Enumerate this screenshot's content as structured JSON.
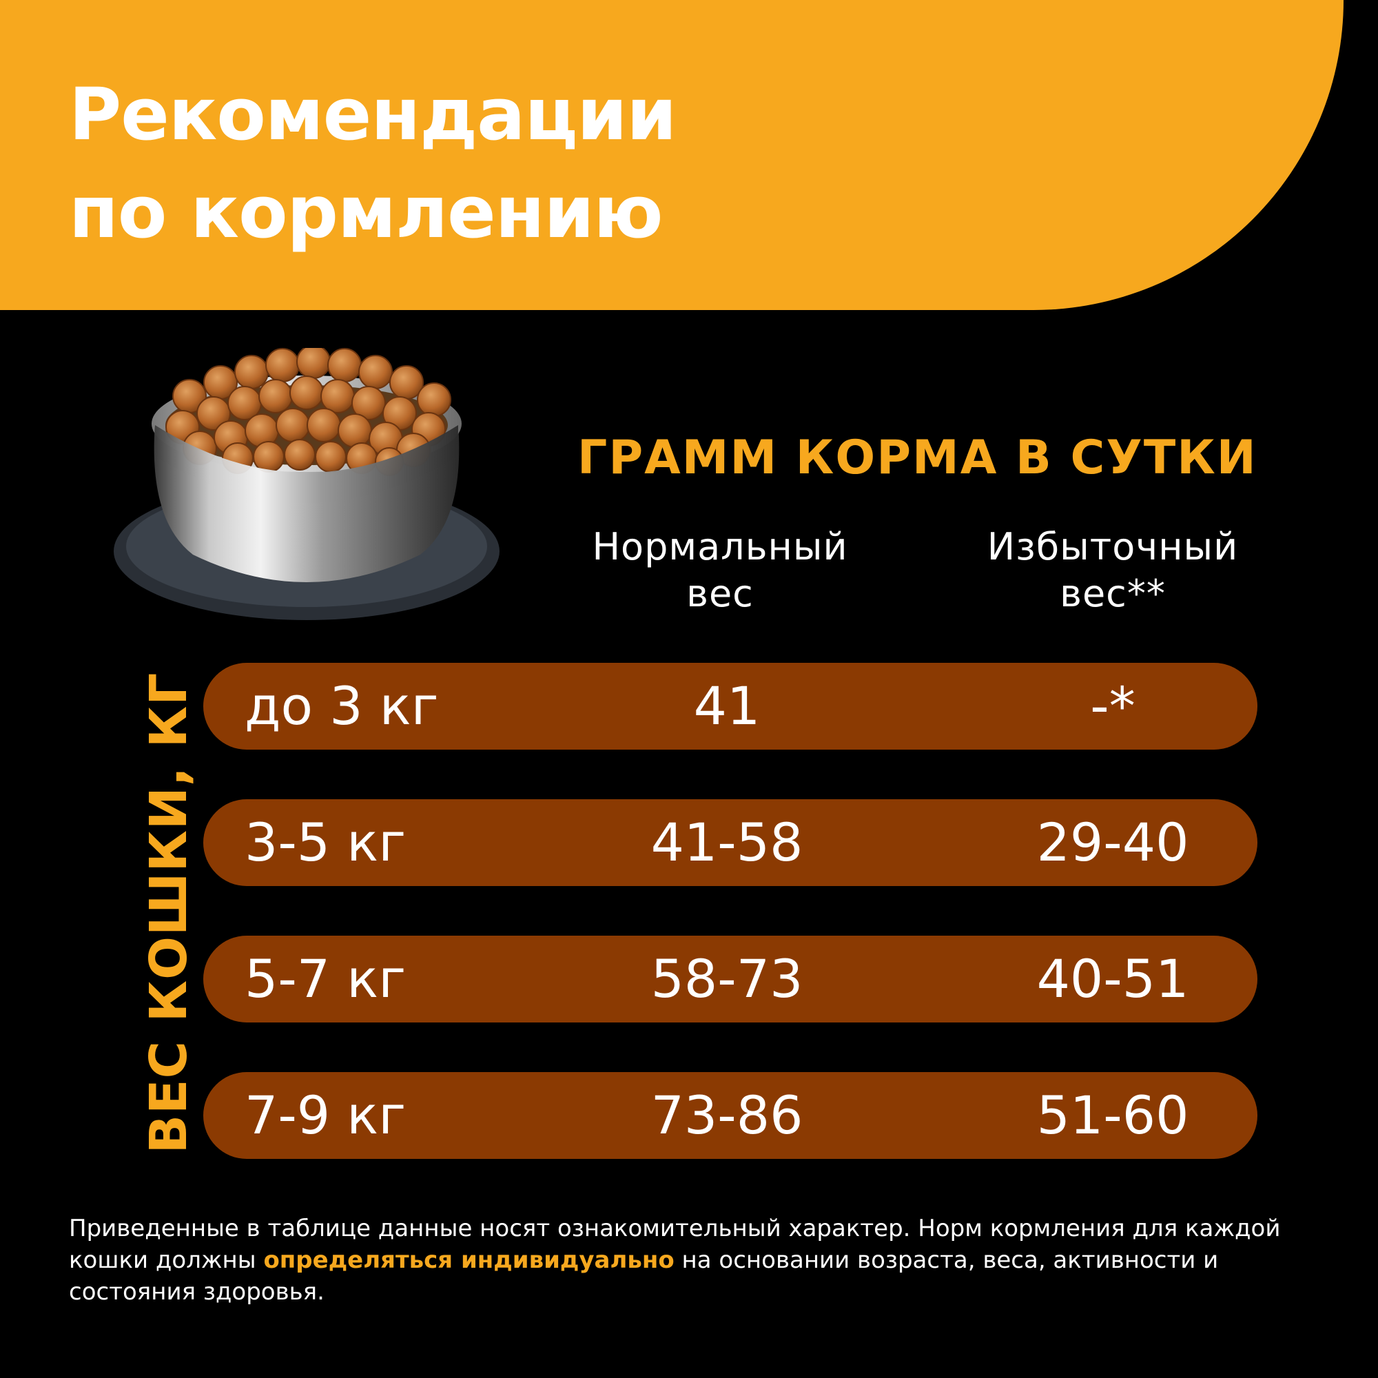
{
  "header": {
    "title_line1": "Рекомендации",
    "title_line2": "по кормлению"
  },
  "illustration": {
    "icon": "food-bowl-icon"
  },
  "table": {
    "heading": "ГРАММ КОРМА В СУТКИ",
    "col_normal_line1": "Нормальный",
    "col_normal_line2": "вес",
    "col_over_line1": "Избыточный",
    "col_over_line2": "вес**",
    "axis_label": "ВЕС КОШКИ, КГ",
    "rows": [
      {
        "weight": "до 3 кг",
        "normal": "41",
        "over": "-*"
      },
      {
        "weight": "3-5 кг",
        "normal": "41-58",
        "over": "29-40"
      },
      {
        "weight": "5-7 кг",
        "normal": "58-73",
        "over": "40-51"
      },
      {
        "weight": "7-9 кг",
        "normal": "73-86",
        "over": "51-60"
      }
    ]
  },
  "footnote": {
    "part1": "Приведенные в таблице данные носят ознакомительный характер. Норм кормления для каждой кошки должны ",
    "highlight": "определяться индивидуально",
    "part2": " на основании возраста, веса, активности и состояния здоровья."
  },
  "colors": {
    "accent": "#F7A81E",
    "row_bg": "#8B3A02",
    "background": "#000000",
    "text": "#FFFFFF"
  }
}
